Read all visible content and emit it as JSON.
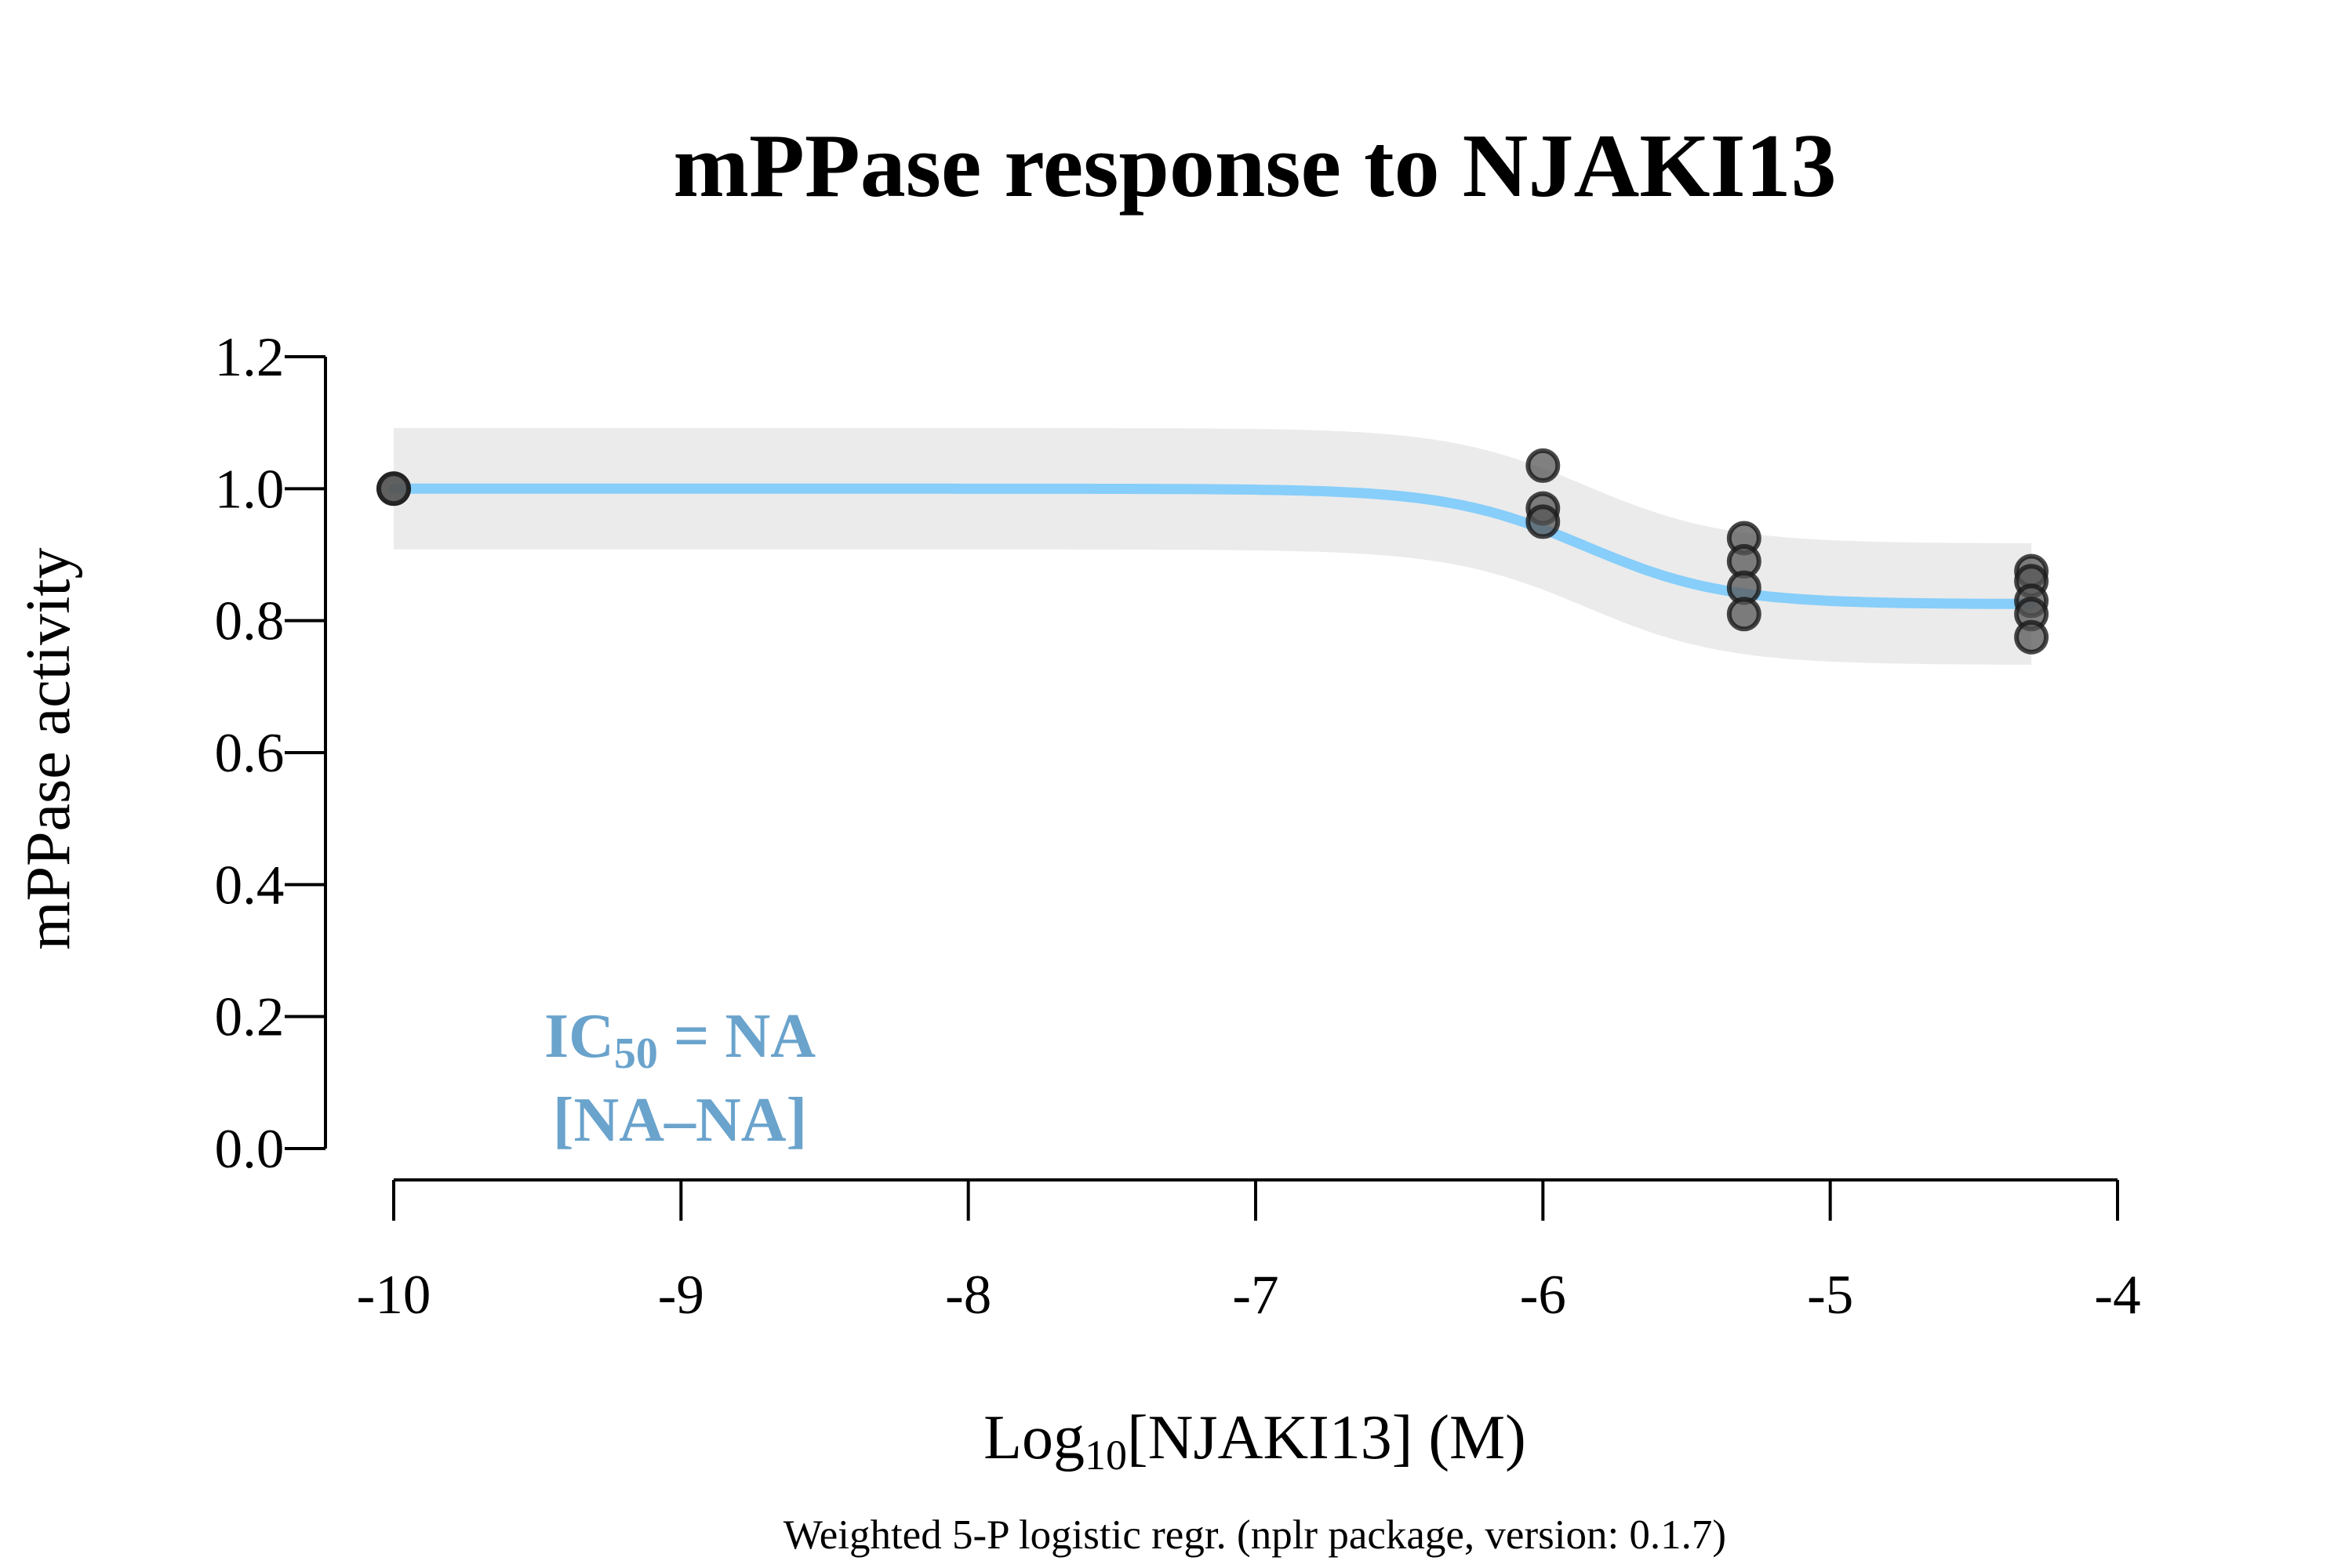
{
  "chart_data": {
    "type": "scatter",
    "title": "mPPase response to NJAKI13",
    "xlabel": {
      "prefix": "Log",
      "subscript": "10",
      "suffix": "[NJAKI13] (M)"
    },
    "ylabel": "mPPase activity",
    "caption": "Weighted 5-P logistic regr. (nplr package, version: 0.1.7)",
    "xlim": [
      -10,
      -4
    ],
    "ylim": [
      0,
      1.2
    ],
    "x_ticks": [
      -10,
      -9,
      -8,
      -7,
      -6,
      -5,
      -4
    ],
    "x_tick_labels": [
      "-10",
      "-9",
      "-8",
      "-7",
      "-6",
      "-5",
      "-4"
    ],
    "y_ticks": [
      0,
      0.2,
      0.4,
      0.6,
      0.8,
      1.0,
      1.2
    ],
    "y_tick_labels": [
      "0.0",
      "0.2",
      "0.4",
      "0.6",
      "0.8",
      "1.0",
      "1.2"
    ],
    "grid": false,
    "points": [
      {
        "x": -10,
        "y": 1.0
      },
      {
        "x": -10,
        "y": 1.0
      },
      {
        "x": -6,
        "y": 1.035
      },
      {
        "x": -6,
        "y": 0.97
      },
      {
        "x": -6,
        "y": 0.95
      },
      {
        "x": -5.3,
        "y": 0.925
      },
      {
        "x": -5.3,
        "y": 0.89
      },
      {
        "x": -5.3,
        "y": 0.85
      },
      {
        "x": -5.3,
        "y": 0.81
      },
      {
        "x": -4.3,
        "y": 0.875
      },
      {
        "x": -4.3,
        "y": 0.86
      },
      {
        "x": -4.3,
        "y": 0.83
      },
      {
        "x": -4.3,
        "y": 0.81
      },
      {
        "x": -4.3,
        "y": 0.775
      }
    ],
    "fit_curve": {
      "model": "5-parameter logistic",
      "bottom": 0.825,
      "top": 1.0,
      "log_ic50": -5.85,
      "hill_slope": 1.8,
      "x_range": [
        -10,
        -4.3
      ],
      "color": "#87cefa"
    },
    "confidence_band": {
      "half_width": 0.092,
      "color": "#ebebeb"
    },
    "annotation": {
      "prefix": "IC",
      "subscript": "50",
      "suffix": " = NA",
      "interval": "[NA–NA]",
      "color": "#6aa3cc",
      "placement": "bottom-left"
    },
    "point_color": "#555555"
  }
}
